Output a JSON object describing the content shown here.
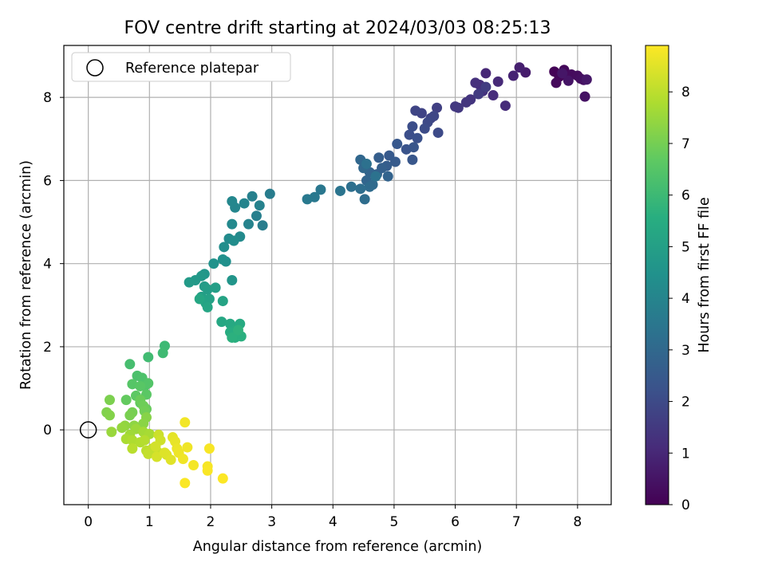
{
  "chart_data": {
    "type": "scatter",
    "title": "FOV centre drift starting at 2024/03/03 08:25:13",
    "xlabel": "Angular distance from reference (arcmin)",
    "ylabel": "Rotation from reference (arcmin)",
    "xlim": [
      -0.4,
      8.55
    ],
    "ylim": [
      -1.8,
      9.25
    ],
    "xticks": [
      0,
      1,
      2,
      3,
      4,
      5,
      6,
      7,
      8
    ],
    "yticks": [
      0,
      2,
      4,
      6,
      8
    ],
    "grid": true,
    "legend": {
      "placement": "top-left",
      "entries": [
        "Reference platepar"
      ]
    },
    "reference_point": {
      "x": 0,
      "y": 0
    },
    "colorbar": {
      "label": "Hours from first FF file",
      "colormap": "viridis",
      "range": [
        0,
        8.9
      ],
      "ticks": [
        0,
        1,
        2,
        3,
        4,
        5,
        6,
        7,
        8
      ]
    },
    "colormap_stops": [
      "#440154",
      "#472c7a",
      "#3b528b",
      "#2c728e",
      "#21918c",
      "#28ae80",
      "#5ec962",
      "#addc30",
      "#fde725"
    ],
    "series": [
      {
        "value_key": "hours from first FF file",
        "points": [
          [
            7.62,
            8.62,
            0.05
          ],
          [
            7.7,
            8.5,
            0.1
          ],
          [
            7.78,
            8.66,
            0.15
          ],
          [
            7.65,
            8.35,
            0.2
          ],
          [
            7.9,
            8.55,
            0.25
          ],
          [
            8.0,
            8.52,
            0.3
          ],
          [
            8.05,
            8.45,
            0.35
          ],
          [
            8.1,
            8.42,
            0.4
          ],
          [
            8.12,
            8.02,
            0.45
          ],
          [
            7.85,
            8.4,
            0.5
          ],
          [
            7.75,
            8.58,
            0.55
          ],
          [
            8.15,
            8.43,
            0.6
          ],
          [
            7.15,
            8.6,
            0.7
          ],
          [
            7.05,
            8.72,
            0.8
          ],
          [
            6.95,
            8.52,
            0.9
          ],
          [
            6.5,
            8.58,
            1.0
          ],
          [
            6.7,
            8.38,
            1.05
          ],
          [
            6.82,
            7.8,
            1.1
          ],
          [
            6.62,
            8.05,
            1.15
          ],
          [
            6.4,
            8.3,
            1.2
          ],
          [
            6.33,
            8.35,
            1.25
          ],
          [
            6.45,
            8.15,
            1.3
          ],
          [
            6.25,
            7.95,
            1.35
          ],
          [
            6.18,
            7.88,
            1.4
          ],
          [
            6.05,
            7.75,
            1.45
          ],
          [
            6.0,
            7.78,
            1.5
          ],
          [
            6.38,
            8.08,
            1.55
          ],
          [
            6.5,
            8.25,
            1.6
          ],
          [
            5.7,
            7.75,
            1.7
          ],
          [
            5.6,
            7.5,
            1.75
          ],
          [
            5.45,
            7.62,
            1.8
          ],
          [
            5.35,
            7.68,
            1.85
          ],
          [
            5.65,
            7.55,
            1.9
          ],
          [
            5.55,
            7.4,
            1.95
          ],
          [
            5.72,
            7.15,
            2.0
          ],
          [
            5.5,
            7.25,
            2.05
          ],
          [
            5.3,
            7.3,
            2.1
          ],
          [
            5.25,
            7.1,
            2.15
          ],
          [
            5.38,
            7.02,
            2.2
          ],
          [
            5.2,
            6.75,
            2.3
          ],
          [
            5.32,
            6.8,
            2.35
          ],
          [
            5.3,
            6.5,
            2.4
          ],
          [
            5.05,
            6.88,
            2.45
          ],
          [
            4.92,
            6.6,
            2.5
          ],
          [
            5.02,
            6.45,
            2.55
          ],
          [
            4.88,
            6.35,
            2.6
          ],
          [
            4.75,
            6.55,
            2.65
          ],
          [
            4.8,
            6.3,
            2.7
          ],
          [
            4.72,
            6.15,
            2.75
          ],
          [
            4.9,
            6.1,
            2.8
          ],
          [
            4.6,
            6.2,
            2.85
          ],
          [
            4.55,
            6.0,
            2.9
          ],
          [
            4.45,
            6.5,
            2.95
          ],
          [
            4.5,
            6.3,
            3.0
          ],
          [
            4.65,
            5.9,
            3.05
          ],
          [
            4.6,
            5.85,
            3.1
          ],
          [
            4.52,
            5.55,
            3.15
          ],
          [
            4.45,
            5.8,
            3.2
          ],
          [
            4.3,
            5.85,
            3.25
          ],
          [
            4.55,
            6.4,
            3.3
          ],
          [
            4.7,
            6.1,
            3.35
          ],
          [
            4.12,
            5.75,
            3.4
          ],
          [
            3.8,
            5.78,
            3.5
          ],
          [
            3.7,
            5.6,
            3.55
          ],
          [
            3.58,
            5.55,
            3.6
          ],
          [
            2.97,
            5.68,
            3.7
          ],
          [
            2.85,
            4.92,
            3.75
          ],
          [
            2.75,
            5.15,
            3.8
          ],
          [
            2.68,
            5.62,
            3.85
          ],
          [
            2.8,
            5.4,
            3.9
          ],
          [
            2.62,
            4.95,
            3.95
          ],
          [
            2.55,
            5.45,
            4.0
          ],
          [
            2.4,
            5.35,
            4.05
          ],
          [
            2.35,
            5.5,
            4.1
          ],
          [
            2.35,
            4.95,
            4.15
          ],
          [
            2.48,
            4.65,
            4.2
          ],
          [
            2.3,
            4.6,
            4.25
          ],
          [
            2.38,
            4.55,
            4.3
          ],
          [
            2.22,
            4.4,
            4.35
          ],
          [
            2.25,
            4.05,
            4.4
          ],
          [
            2.2,
            4.1,
            4.45
          ],
          [
            2.05,
            4.0,
            4.5
          ],
          [
            2.35,
            3.6,
            4.6
          ],
          [
            1.9,
            3.75,
            4.65
          ],
          [
            1.85,
            3.7,
            4.7
          ],
          [
            1.75,
            3.6,
            4.75
          ],
          [
            1.65,
            3.55,
            4.8
          ],
          [
            1.9,
            3.45,
            4.85
          ],
          [
            1.95,
            3.38,
            4.9
          ],
          [
            2.08,
            3.42,
            4.95
          ],
          [
            1.85,
            3.2,
            5.0
          ],
          [
            1.98,
            3.15,
            5.05
          ],
          [
            1.92,
            3.05,
            5.1
          ],
          [
            2.2,
            3.1,
            5.15
          ],
          [
            1.95,
            2.95,
            5.2
          ],
          [
            1.82,
            3.15,
            5.25
          ],
          [
            2.18,
            2.6,
            5.3
          ],
          [
            2.32,
            2.55,
            5.35
          ],
          [
            2.48,
            2.55,
            5.4
          ],
          [
            2.4,
            2.4,
            5.45
          ],
          [
            2.32,
            2.35,
            5.5
          ],
          [
            2.4,
            2.22,
            5.55
          ],
          [
            2.5,
            2.25,
            5.6
          ],
          [
            2.35,
            2.22,
            5.65
          ],
          [
            2.45,
            2.4,
            5.7
          ],
          [
            1.25,
            2.02,
            6.0
          ],
          [
            1.22,
            1.85,
            6.05
          ],
          [
            0.98,
            1.75,
            6.1
          ],
          [
            0.68,
            1.58,
            6.2
          ],
          [
            0.8,
            1.3,
            6.3
          ],
          [
            0.88,
            1.25,
            6.35
          ],
          [
            0.92,
            1.05,
            6.4
          ],
          [
            0.98,
            1.12,
            6.45
          ],
          [
            0.72,
            1.1,
            6.5
          ],
          [
            0.85,
            1.05,
            6.55
          ],
          [
            0.95,
            0.85,
            6.6
          ],
          [
            0.78,
            0.82,
            6.65
          ],
          [
            0.85,
            0.65,
            6.7
          ],
          [
            0.62,
            0.72,
            6.75
          ],
          [
            0.95,
            0.5,
            6.8
          ],
          [
            0.85,
            0.72,
            6.85
          ],
          [
            0.9,
            0.58,
            6.9
          ],
          [
            0.92,
            0.45,
            6.95
          ],
          [
            0.72,
            0.42,
            7.0
          ],
          [
            0.68,
            0.35,
            7.05
          ],
          [
            0.35,
            0.72,
            7.1
          ],
          [
            0.3,
            0.42,
            7.15
          ],
          [
            0.35,
            0.35,
            7.2
          ],
          [
            0.95,
            0.3,
            7.25
          ],
          [
            0.9,
            0.15,
            7.3
          ],
          [
            0.75,
            0.1,
            7.35
          ],
          [
            0.6,
            0.1,
            7.4
          ],
          [
            0.55,
            0.05,
            7.45
          ],
          [
            0.38,
            -0.05,
            7.5
          ],
          [
            0.78,
            0.02,
            7.55
          ],
          [
            0.68,
            -0.12,
            7.6
          ],
          [
            0.9,
            -0.05,
            7.65
          ],
          [
            1.0,
            -0.1,
            7.7
          ],
          [
            0.62,
            -0.22,
            7.75
          ],
          [
            0.72,
            -0.25,
            7.8
          ],
          [
            0.85,
            -0.3,
            7.85
          ],
          [
            0.92,
            -0.25,
            7.9
          ],
          [
            0.72,
            -0.45,
            7.95
          ],
          [
            0.95,
            -0.5,
            8.0
          ],
          [
            1.05,
            -0.45,
            8.05
          ],
          [
            0.98,
            -0.58,
            8.1
          ],
          [
            1.15,
            -0.55,
            8.15
          ],
          [
            1.15,
            -0.12,
            8.2
          ],
          [
            1.18,
            -0.25,
            8.25
          ],
          [
            1.1,
            -0.4,
            8.3
          ],
          [
            1.12,
            -0.65,
            8.35
          ],
          [
            1.28,
            -0.6,
            8.4
          ],
          [
            1.25,
            -0.55,
            8.45
          ],
          [
            1.35,
            -0.72,
            8.5
          ],
          [
            1.38,
            -0.18,
            8.55
          ],
          [
            1.42,
            -0.28,
            8.6
          ],
          [
            1.45,
            -0.45,
            8.65
          ],
          [
            1.48,
            -0.55,
            8.68
          ],
          [
            1.62,
            -0.42,
            8.7
          ],
          [
            1.55,
            -0.7,
            8.72
          ],
          [
            1.58,
            0.18,
            8.75
          ],
          [
            1.72,
            -0.85,
            8.78
          ],
          [
            1.95,
            -0.88,
            8.8
          ],
          [
            1.98,
            -0.45,
            8.82
          ],
          [
            1.95,
            -0.98,
            8.84
          ],
          [
            1.58,
            -1.28,
            8.86
          ],
          [
            2.2,
            -1.17,
            8.88
          ]
        ]
      }
    ]
  }
}
